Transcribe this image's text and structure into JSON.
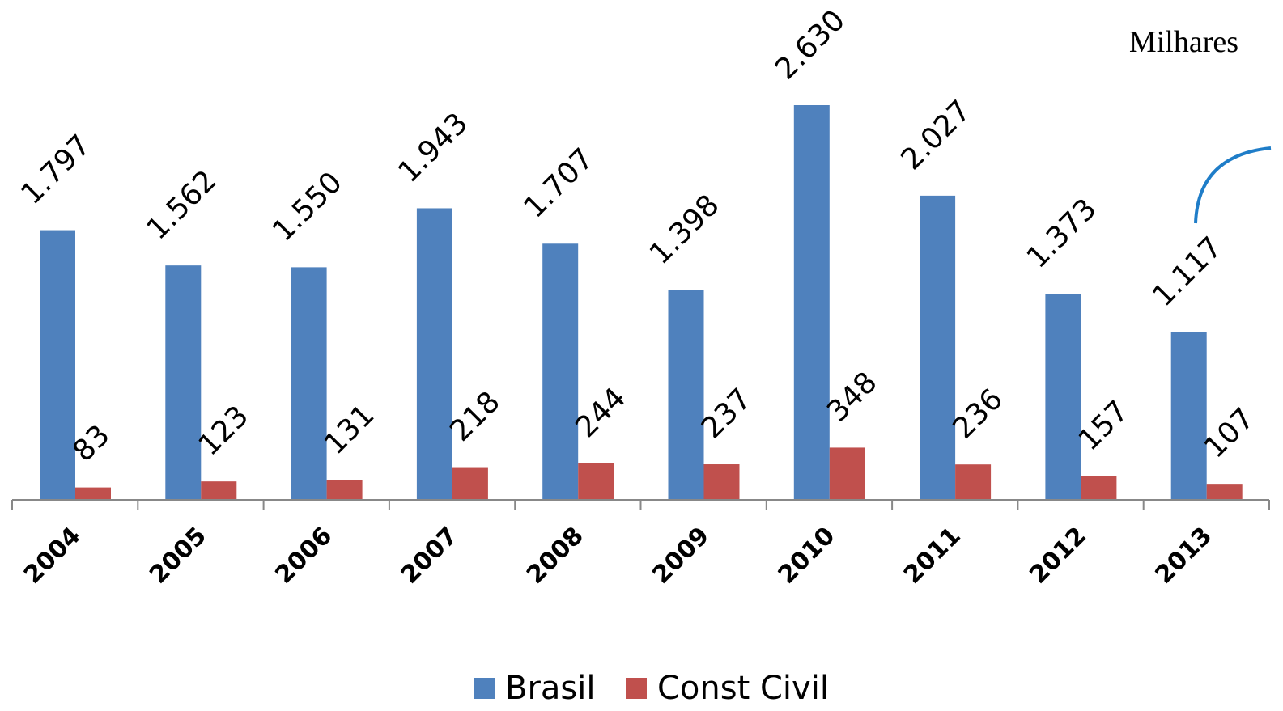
{
  "chart_data": {
    "type": "bar",
    "annotation": "Milhares",
    "categories": [
      "2004",
      "2005",
      "2006",
      "2007",
      "2008",
      "2009",
      "2010",
      "2011",
      "2012",
      "2013"
    ],
    "series": [
      {
        "name": "Brasil",
        "color": "#4f81bd",
        "values": [
          1797,
          1562,
          1550,
          1943,
          1707,
          1398,
          2630,
          2027,
          1373,
          1117
        ],
        "value_labels": [
          "1.797",
          "1.562",
          "1.550",
          "1.943",
          "1.707",
          "1.398",
          "2.630",
          "2.027",
          "1.373",
          "1.117"
        ]
      },
      {
        "name": "Const Civil",
        "color": "#c0504d",
        "values": [
          83,
          123,
          131,
          218,
          244,
          237,
          348,
          236,
          157,
          107
        ]
      }
    ],
    "legend": "bottom"
  }
}
